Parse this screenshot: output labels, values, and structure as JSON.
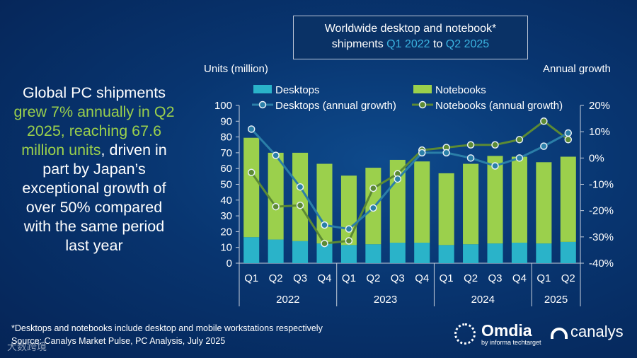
{
  "title": {
    "line1": "Worldwide desktop and notebook*",
    "line2_pre": "shipments ",
    "q_start": "Q1 2022",
    "to": " to ",
    "q_end": "Q2 2025"
  },
  "headline": {
    "p1": "Global PC shipments ",
    "p2": "grew 7% annually in Q2 2025, reaching 67.6 million units",
    "p3": ", driven in part by Japan’s exceptional growth of over 50% compared with the same period last year"
  },
  "footnotes": {
    "note": "*Desktops and notebooks include desktop and mobile workstations respectively",
    "source": "Source: Canalys Market Pulse, PC Analysis, July 2025"
  },
  "logos": {
    "omdia": "Omdia",
    "omdia_sub": "by informa techtarget",
    "canalys": "canalys"
  },
  "watermark": "大数跨境",
  "colors": {
    "desktops": "#2ab3c9",
    "notebooks": "#9bd04c",
    "desktop_line": "#2b7fa8",
    "notebook_line": "#5c8a34"
  },
  "chart_data": {
    "type": "bar",
    "ylabel_left": "Units (million)",
    "ylabel_right": "Annual growth",
    "categories": [
      "Q1",
      "Q2",
      "Q3",
      "Q4",
      "Q1",
      "Q2",
      "Q3",
      "Q4",
      "Q1",
      "Q2",
      "Q3",
      "Q4",
      "Q1",
      "Q2"
    ],
    "years": [
      {
        "label": "2022",
        "span": 4
      },
      {
        "label": "2023",
        "span": 4
      },
      {
        "label": "2024",
        "span": 4
      },
      {
        "label": "2025",
        "span": 2
      }
    ],
    "ylim_left": [
      0,
      100
    ],
    "yticks_left": [
      0,
      10,
      20,
      30,
      40,
      50,
      60,
      70,
      80,
      90,
      100
    ],
    "ylim_right": [
      -0.4,
      0.2
    ],
    "yticks_right": [
      "-40%",
      "-30%",
      "-20%",
      "-10%",
      "0%",
      "10%",
      "20%"
    ],
    "stacked": true,
    "series": [
      {
        "name": "Desktops",
        "type": "bar",
        "values": [
          16.5,
          15,
          14,
          12.5,
          11.5,
          12,
          13,
          13,
          11.5,
          12,
          12.5,
          13,
          12.5,
          13.5
        ]
      },
      {
        "name": "Notebooks",
        "type": "bar",
        "values": [
          63,
          55,
          56,
          50.5,
          44,
          48.5,
          52.5,
          51.5,
          45.5,
          51,
          55.5,
          54.5,
          51.5,
          54
        ]
      },
      {
        "name": "Desktops (annual growth)",
        "type": "line",
        "axis": "right",
        "values": [
          0.11,
          0.01,
          -0.11,
          -0.255,
          -0.27,
          -0.19,
          -0.08,
          0.02,
          0.02,
          0.0,
          -0.03,
          0.0,
          0.045,
          0.095
        ]
      },
      {
        "name": "Notebooks (annual growth)",
        "type": "line",
        "axis": "right",
        "values": [
          -0.055,
          -0.185,
          -0.18,
          -0.325,
          -0.315,
          -0.115,
          -0.06,
          0.03,
          0.04,
          0.05,
          0.05,
          0.07,
          0.14,
          0.07
        ]
      }
    ],
    "legend_placement": "top"
  }
}
